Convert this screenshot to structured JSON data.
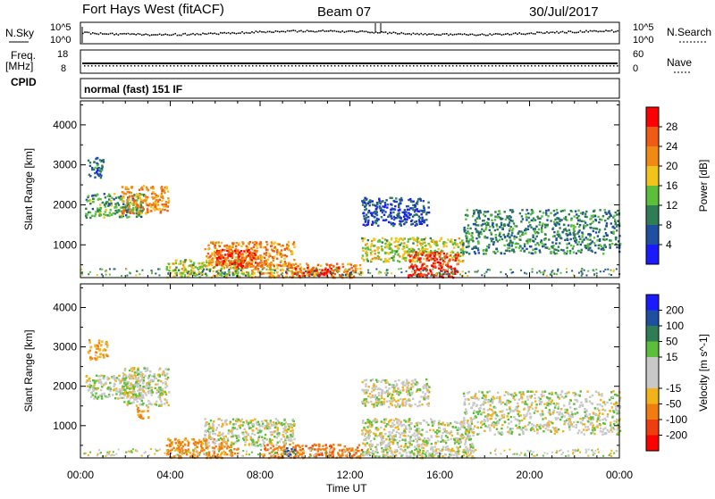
{
  "header": {
    "station": "Fort Hays West (fitACF)",
    "beam": "Beam 07",
    "date": "30/Jul/2017"
  },
  "left_labels": {
    "nsky": "N.Sky",
    "freq_line1": "Freq.",
    "freq_line2": "[MHz]",
    "cpid": "CPID"
  },
  "right_labels": {
    "nsearch": "N.Search",
    "nave": "Nave"
  },
  "panel_ticks": {
    "noise_left_top": "10^5",
    "noise_left_bottom": "10^0",
    "noise_right_top": "10^5",
    "noise_right_bottom": "10^0",
    "freq_top": "18",
    "freq_bottom": "8",
    "nave_top": "60",
    "nave_bottom": "0"
  },
  "cpid_text": "normal (fast) 151 IF",
  "colors": {
    "power_scale": [
      "#1a1aff",
      "#1f4fa0",
      "#2e7d55",
      "#5bbf3a",
      "#f2c31a",
      "#f08a14",
      "#ef5a14",
      "#ff0000"
    ],
    "velocity_scale": [
      "#ff0000",
      "#ef3d10",
      "#f07d10",
      "#f2b21a",
      "#c8c8c8",
      "#c8c8c8",
      "#5bbf3a",
      "#2e7d55",
      "#1f4fa0",
      "#1a1aff"
    ]
  },
  "chart_data": [
    {
      "type": "heatmap",
      "name": "power",
      "ylabel": "Slant Range [km]",
      "xlabel": "",
      "x_ticks": [
        "00:00",
        "04:00",
        "08:00",
        "12:00",
        "16:00",
        "20:00",
        "00:00"
      ],
      "y_ticks": [
        "1000",
        "2000",
        "3000",
        "4000"
      ],
      "ylim": [
        180,
        4600
      ],
      "xlim_hours": [
        0,
        24
      ],
      "colorbar": {
        "label": "Power [dB]",
        "ticks": [
          "4",
          "8",
          "12",
          "16",
          "20",
          "24",
          "28"
        ],
        "range": [
          0,
          32
        ]
      },
      "regions": [
        {
          "t0": 0.2,
          "t1": 2.8,
          "r0": 1700,
          "r1": 2300,
          "level": 12
        },
        {
          "t0": 1.8,
          "t1": 3.9,
          "r0": 1800,
          "r1": 2500,
          "level": 22
        },
        {
          "t0": 0.3,
          "t1": 1.0,
          "r0": 2700,
          "r1": 3200,
          "level": 8
        },
        {
          "t0": 3.8,
          "t1": 7.5,
          "r0": 200,
          "r1": 650,
          "level": 16
        },
        {
          "t0": 5.5,
          "t1": 9.5,
          "r0": 450,
          "r1": 1100,
          "level": 22
        },
        {
          "t0": 6.0,
          "t1": 7.8,
          "r0": 450,
          "r1": 900,
          "level": 28
        },
        {
          "t0": 7.5,
          "t1": 12.5,
          "r0": 200,
          "r1": 550,
          "level": 22
        },
        {
          "t0": 9.5,
          "t1": 11.5,
          "r0": 250,
          "r1": 450,
          "level": 28
        },
        {
          "t0": 12.5,
          "t1": 17.0,
          "r0": 600,
          "r1": 1200,
          "level": 16
        },
        {
          "t0": 14.5,
          "t1": 16.8,
          "r0": 200,
          "r1": 850,
          "level": 28
        },
        {
          "t0": 17.0,
          "t1": 24.0,
          "r0": 800,
          "r1": 1900,
          "level": 10
        },
        {
          "t0": 12.5,
          "t1": 15.5,
          "r0": 1500,
          "r1": 2200,
          "level": 6
        }
      ]
    },
    {
      "type": "heatmap",
      "name": "velocity",
      "ylabel": "Slant Range [km]",
      "xlabel": "Time UT",
      "x_ticks": [
        "00:00",
        "04:00",
        "08:00",
        "12:00",
        "16:00",
        "20:00",
        "00:00"
      ],
      "y_ticks": [
        "1000",
        "2000",
        "3000",
        "4000"
      ],
      "ylim": [
        180,
        4600
      ],
      "xlim_hours": [
        0,
        24
      ],
      "colorbar": {
        "label": "Velocity [m s^-1]",
        "ticks": [
          "-200",
          "-100",
          "-50",
          "-15",
          "15",
          "50",
          "100",
          "200"
        ],
        "range": [
          -250,
          250
        ]
      },
      "regions": [
        {
          "t0": 0.2,
          "t1": 2.8,
          "r0": 1700,
          "r1": 2300,
          "level": 0
        },
        {
          "t0": 1.8,
          "t1": 3.9,
          "r0": 1500,
          "r1": 2500,
          "level": 0
        },
        {
          "t0": 2.5,
          "t1": 3.0,
          "r0": 1200,
          "r1": 1500,
          "level": -60
        },
        {
          "t0": 0.3,
          "t1": 1.2,
          "r0": 2700,
          "r1": 3200,
          "level": -40
        },
        {
          "t0": 3.8,
          "t1": 7.0,
          "r0": 200,
          "r1": 700,
          "level": -60
        },
        {
          "t0": 5.5,
          "t1": 9.5,
          "r0": 500,
          "r1": 1200,
          "level": 0
        },
        {
          "t0": 8.0,
          "t1": 12.5,
          "r0": 200,
          "r1": 550,
          "level": -80
        },
        {
          "t0": 9.0,
          "t1": 9.6,
          "r0": 250,
          "r1": 450,
          "level": 120
        },
        {
          "t0": 12.5,
          "t1": 17.5,
          "r0": 200,
          "r1": 1200,
          "level": 0
        },
        {
          "t0": 17.0,
          "t1": 24.0,
          "r0": 800,
          "r1": 1900,
          "level": 0
        },
        {
          "t0": 12.5,
          "t1": 15.5,
          "r0": 1500,
          "r1": 2200,
          "level": 0
        }
      ]
    }
  ]
}
